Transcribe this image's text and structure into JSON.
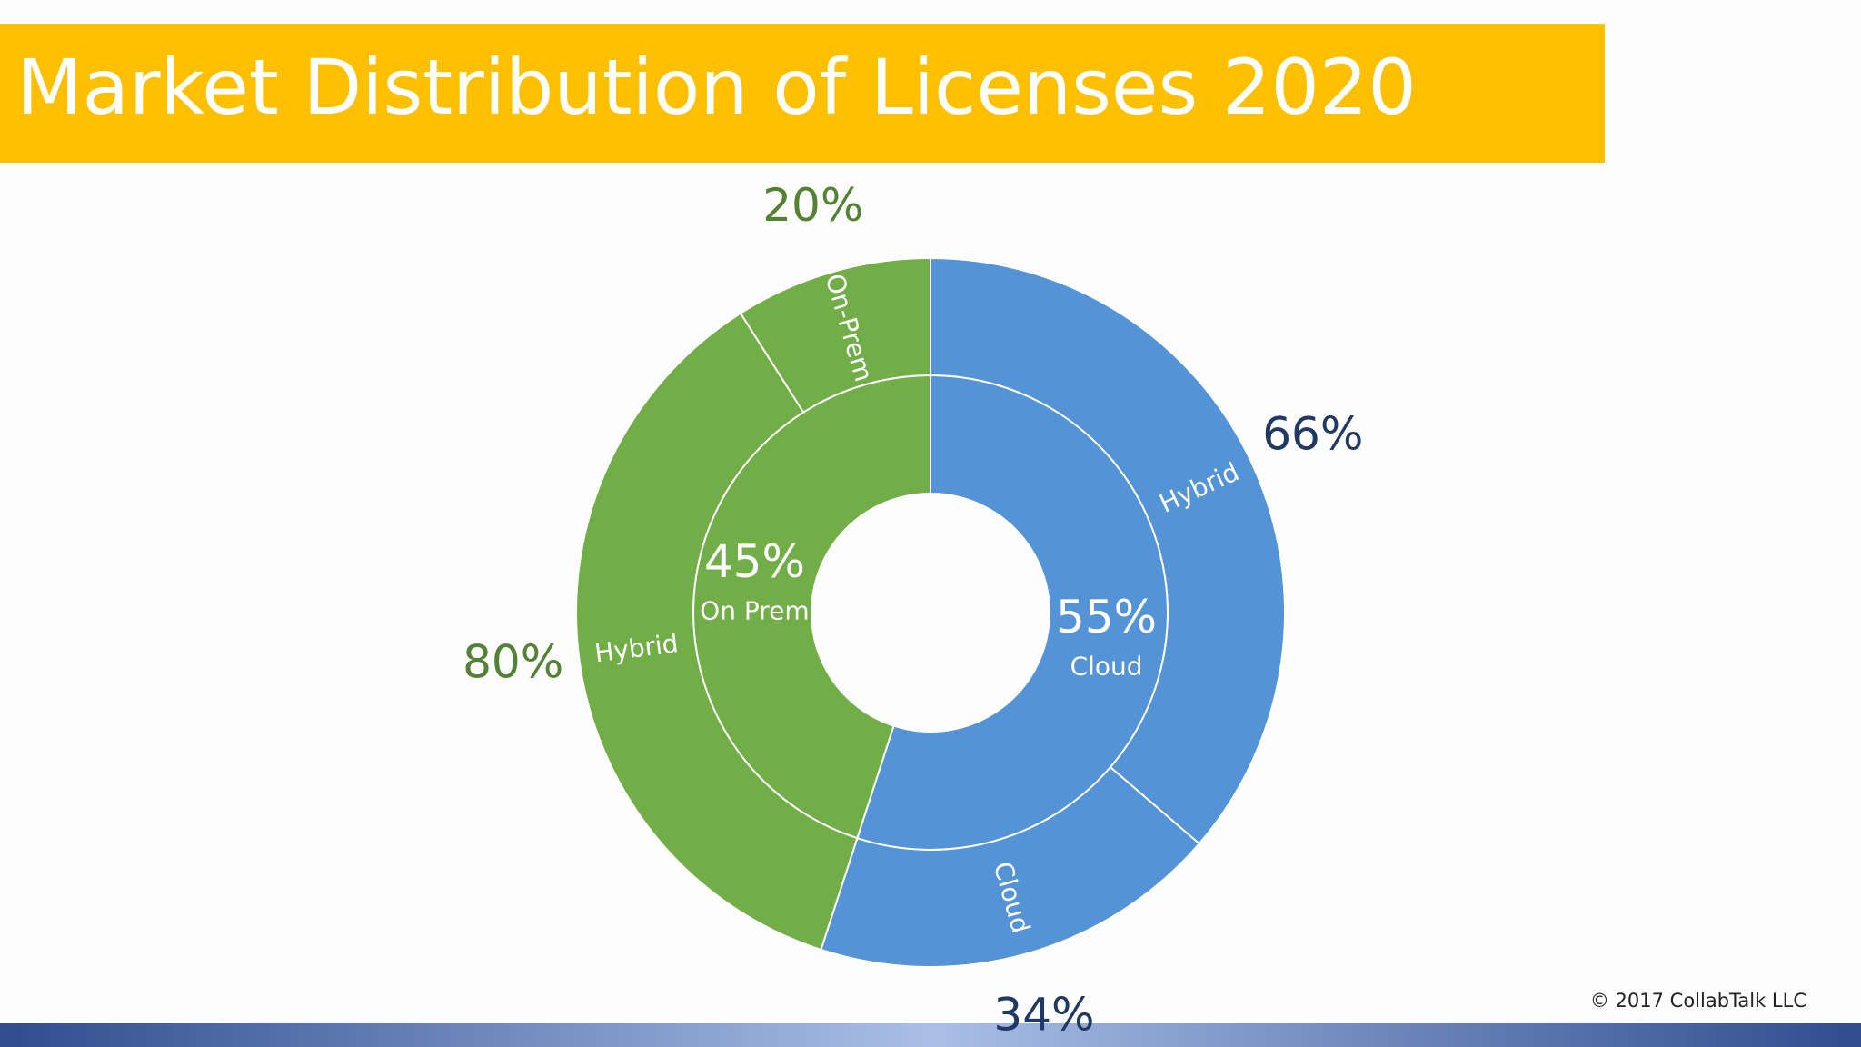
{
  "chart_data": {
    "type": "sunburst",
    "title": "Market Distribution of Licenses 2020",
    "nodes": [
      {
        "name": "Cloud",
        "value": 55,
        "value_label": "55%",
        "color": "#5393d6",
        "label_color": "#203864",
        "children": [
          {
            "name": "Hybrid",
            "value": 66,
            "value_label": "66%"
          },
          {
            "name": "Cloud",
            "value": 34,
            "value_label": "34%"
          }
        ]
      },
      {
        "name": "On Prem",
        "value": 45,
        "value_label": "45%",
        "color": "#72ae48",
        "label_color": "#548235",
        "children": [
          {
            "name": "Hybrid",
            "value": 80,
            "value_label": "80%"
          },
          {
            "name": "On-Prem",
            "value": 20,
            "value_label": "20%"
          }
        ]
      }
    ]
  },
  "footer": "© 2017 CollabTalk LLC"
}
